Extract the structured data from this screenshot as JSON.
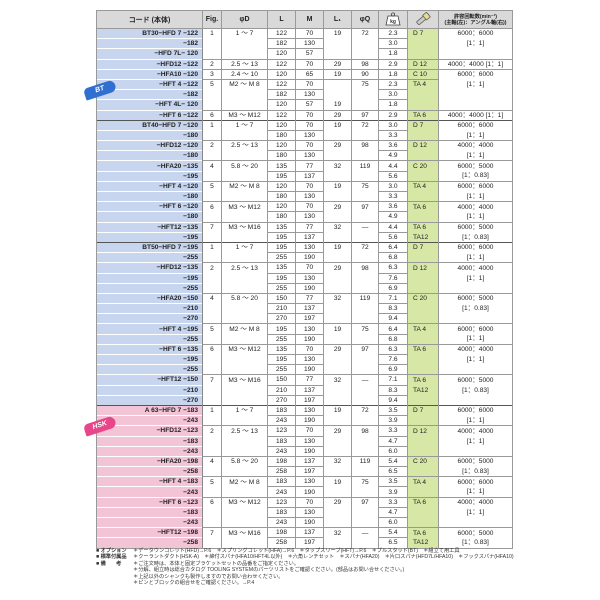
{
  "header": {
    "code": "コード (本体)",
    "fig": "Fig.",
    "phi_d": "φD",
    "l": "L",
    "m": "M",
    "l1": "L₁",
    "phi_q": "φQ",
    "weight_icon": "kg",
    "wrench_icon": "wrench-icon",
    "rpm_title": "許容回転数(min⁻¹)",
    "rpm_sub": "(主軸(左)：アングル軸(右))"
  },
  "badges": {
    "bt": "BT",
    "hsk": "HSK"
  },
  "colors": {
    "bt": "#c7d5ee",
    "hsk": "#f3c3d6",
    "tool": "#d6e7a6",
    "header": "#d9d9d9"
  },
  "rows": [
    [
      "BT30−HFD 7 −122",
      "1",
      "1 ～  7",
      "122",
      "70",
      "19",
      "72",
      "2.3",
      "D  7",
      "6000：6000",
      "bt"
    ],
    [
      "−182",
      "",
      "",
      "182",
      "130",
      "",
      "",
      "3.0",
      "",
      "[1：1]",
      "bt"
    ],
    [
      "−HFD 7L− 120",
      "",
      "",
      "120",
      "57",
      "",
      "",
      "1.8",
      "",
      "",
      "bt"
    ],
    [
      "−HFD12 −122",
      "2",
      "2.5 ～ 13",
      "122",
      "70",
      "29",
      "98",
      "2.9",
      "D 12",
      "4000：4000 [1：1]",
      "bt"
    ],
    [
      "−HFA10 −120",
      "3",
      "2.4 ～ 10",
      "120",
      "65",
      "19",
      "90",
      "1.8",
      "C 10",
      "6000：6000",
      "bt"
    ],
    [
      "−HFT 4 −122",
      "5",
      "M2 ～ M 8",
      "122",
      "70",
      "",
      "75",
      "2.3",
      "TA 4",
      "[1：1]",
      "bt"
    ],
    [
      "−182",
      "",
      "",
      "182",
      "130",
      "",
      "",
      "3.0",
      "",
      "",
      "bt"
    ],
    [
      "−HFT 4L− 120",
      "",
      "",
      "120",
      "57",
      "19",
      "",
      "1.8",
      "",
      "",
      "bt"
    ],
    [
      "−HFT 6 −122",
      "6",
      "M3 ～ M12",
      "122",
      "70",
      "29",
      "97",
      "2.9",
      "TA 6",
      "4000：4000 [1：1]",
      "bt"
    ],
    [
      "BT40−HFD 7 −120",
      "1",
      "1 ～  7",
      "120",
      "70",
      "19",
      "72",
      "3.0",
      "D  7",
      "6000：6000",
      "bt"
    ],
    [
      "−180",
      "",
      "",
      "180",
      "130",
      "",
      "",
      "3.3",
      "",
      "[1：1]",
      "bt"
    ],
    [
      "−HFD12 −120",
      "2",
      "2.5 ～ 13",
      "120",
      "70",
      "29",
      "98",
      "3.6",
      "D 12",
      "4000：4000",
      "bt"
    ],
    [
      "−180",
      "",
      "",
      "180",
      "130",
      "",
      "",
      "4.9",
      "",
      "[1：1]",
      "bt"
    ],
    [
      "−HFA20 −135",
      "4",
      "5.8 ～ 20",
      "135",
      "77",
      "32",
      "119",
      "4.4",
      "C 20",
      "6000：5000",
      "bt"
    ],
    [
      "−195",
      "",
      "",
      "195",
      "137",
      "",
      "",
      "5.6",
      "",
      "[1：0.83]",
      "bt"
    ],
    [
      "−HFT 4 −120",
      "5",
      "M2 ～ M 8",
      "120",
      "70",
      "19",
      "75",
      "3.0",
      "TA 4",
      "6000：6000",
      "bt"
    ],
    [
      "−180",
      "",
      "",
      "180",
      "130",
      "",
      "",
      "3.3",
      "",
      "[1：1]",
      "bt"
    ],
    [
      "−HFT 6 −120",
      "6",
      "M3 ～ M12",
      "120",
      "70",
      "29",
      "97",
      "3.6",
      "TA 6",
      "4000：4000",
      "bt"
    ],
    [
      "−180",
      "",
      "",
      "180",
      "130",
      "",
      "",
      "4.9",
      "",
      "[1：1]",
      "bt"
    ],
    [
      "−HFT12 −135",
      "7",
      "M3 ～ M16",
      "135",
      "77",
      "32",
      "—",
      "4.4",
      "TA 6",
      "6000：5000",
      "bt"
    ],
    [
      "−195",
      "",
      "",
      "195",
      "137",
      "",
      "",
      "5.6",
      "TA12",
      "[1：0.83]",
      "bt"
    ],
    [
      "BT50−HFD 7 −195",
      "1",
      "1 ～  7",
      "195",
      "130",
      "19",
      "72",
      "6.4",
      "D  7",
      "6000：6000",
      "bt"
    ],
    [
      "−255",
      "",
      "",
      "255",
      "190",
      "",
      "",
      "6.8",
      "",
      "[1：1]",
      "bt"
    ],
    [
      "−HFD12 −135",
      "2",
      "2.5 ～ 13",
      "135",
      "70",
      "29",
      "98",
      "6.3",
      "D 12",
      "4000：4000",
      "bt"
    ],
    [
      "−195",
      "",
      "",
      "195",
      "130",
      "",
      "",
      "7.6",
      "",
      "[1：1]",
      "bt"
    ],
    [
      "−255",
      "",
      "",
      "255",
      "190",
      "",
      "",
      "6.9",
      "",
      "",
      "bt"
    ],
    [
      "−HFA20 −150",
      "4",
      "5.8 ～ 20",
      "150",
      "77",
      "32",
      "119",
      "7.1",
      "C 20",
      "6000：5000",
      "bt"
    ],
    [
      "−210",
      "",
      "",
      "210",
      "137",
      "",
      "",
      "8.3",
      "",
      "[1：0.83]",
      "bt"
    ],
    [
      "−270",
      "",
      "",
      "270",
      "197",
      "",
      "",
      "9.4",
      "",
      "",
      "bt"
    ],
    [
      "−HFT 4 −195",
      "5",
      "M2 ～ M 8",
      "195",
      "130",
      "19",
      "75",
      "6.4",
      "TA 4",
      "6000：6000",
      "bt"
    ],
    [
      "−255",
      "",
      "",
      "255",
      "190",
      "",
      "",
      "6.8",
      "",
      "[1：1]",
      "bt"
    ],
    [
      "−HFT 6 −135",
      "6",
      "M3 ～ M12",
      "135",
      "70",
      "29",
      "97",
      "6.3",
      "TA 6",
      "4000：4000",
      "bt"
    ],
    [
      "−195",
      "",
      "",
      "195",
      "130",
      "",
      "",
      "7.6",
      "",
      "[1：1]",
      "bt"
    ],
    [
      "−255",
      "",
      "",
      "255",
      "190",
      "",
      "",
      "6.9",
      "",
      "",
      "bt"
    ],
    [
      "−HFT12 −150",
      "7",
      "M3 ～ M16",
      "150",
      "77",
      "32",
      "—",
      "7.1",
      "TA 6",
      "6000：5000",
      "bt"
    ],
    [
      "−210",
      "",
      "",
      "210",
      "137",
      "",
      "",
      "8.3",
      "TA12",
      "[1：0.83]",
      "bt"
    ],
    [
      "−270",
      "",
      "",
      "270",
      "197",
      "",
      "",
      "9.4",
      "",
      "",
      "bt"
    ],
    [
      "A 63−HFD 7 −183",
      "1",
      "1 ～  7",
      "183",
      "130",
      "19",
      "72",
      "3.5",
      "D  7",
      "6000：6000",
      "hsk"
    ],
    [
      "−243",
      "",
      "",
      "243",
      "190",
      "",
      "",
      "3.9",
      "",
      "[1：1]",
      "hsk"
    ],
    [
      "−HFD12 −123",
      "2",
      "2.5 ～ 13",
      "123",
      "70",
      "29",
      "98",
      "3.3",
      "D 12",
      "4000：4000",
      "hsk"
    ],
    [
      "−183",
      "",
      "",
      "183",
      "130",
      "",
      "",
      "4.7",
      "",
      "[1：1]",
      "hsk"
    ],
    [
      "−243",
      "",
      "",
      "243",
      "190",
      "",
      "",
      "6.0",
      "",
      "",
      "hsk"
    ],
    [
      "−HFA20 −198",
      "4",
      "5.8 ～ 20",
      "198",
      "137",
      "32",
      "119",
      "5.4",
      "C 20",
      "6000：5000",
      "hsk"
    ],
    [
      "−258",
      "",
      "",
      "258",
      "197",
      "",
      "",
      "6.5",
      "",
      "[1：0.83]",
      "hsk"
    ],
    [
      "−HFT 4 −183",
      "5",
      "M2 ～ M 8",
      "183",
      "130",
      "19",
      "75",
      "3.5",
      "TA 4",
      "6000：6000",
      "hsk"
    ],
    [
      "−243",
      "",
      "",
      "243",
      "190",
      "",
      "",
      "3.9",
      "",
      "[1：1]",
      "hsk"
    ],
    [
      "−HFT 6 −123",
      "6",
      "M3 ～ M12",
      "123",
      "70",
      "29",
      "97",
      "3.3",
      "TA 6",
      "4000：4000",
      "hsk"
    ],
    [
      "−183",
      "",
      "",
      "183",
      "130",
      "",
      "",
      "4.7",
      "",
      "[1：1]",
      "hsk"
    ],
    [
      "−243",
      "",
      "",
      "243",
      "190",
      "",
      "",
      "6.0",
      "",
      "",
      "hsk"
    ],
    [
      "−HFT12 −198",
      "7",
      "M3 ～ M16",
      "198",
      "137",
      "32",
      "—",
      "5.4",
      "TA 6",
      "6000：5000",
      "hsk"
    ],
    [
      "−258",
      "",
      "",
      "258",
      "197",
      "",
      "",
      "6.5",
      "TA12",
      "[1：0.83]",
      "hsk"
    ]
  ],
  "notes": {
    "option_head": "■ オプション",
    "option": "＊データウンコレット(HFD)→P.6　＊スプリングコレット(HFA)→P.6　＊タップスリーブ(HFT)→P.6　＊プルスタッド(BT)　＊組立て用工具",
    "std_head": "■ 標準付属品",
    "std": "＊クーラントダクト(HSK-A)　＊締付スパナ(HFA10/HFT4L以外)　＊六角レンチセット　＊スパナ(HFA20)　＊片口スパナ(HFD7L/HFA10)　＊フックスパナ(HFA10)",
    "remarks_head": "■ 備　　考",
    "remarks": [
      "＊ご注文時は、本体と固定ブラケットセットの品番をご指定ください。",
      "＊分解、組立時は総合カタログ TOOLING SYSTEMのパーツリストをご確認ください。(部品はお問い合せください。)",
      "＊上記以外のシャンクも製作しますのでお問い合わせください。",
      "＊ピンとブロックの組合せをご確認ください。→P.4"
    ]
  }
}
